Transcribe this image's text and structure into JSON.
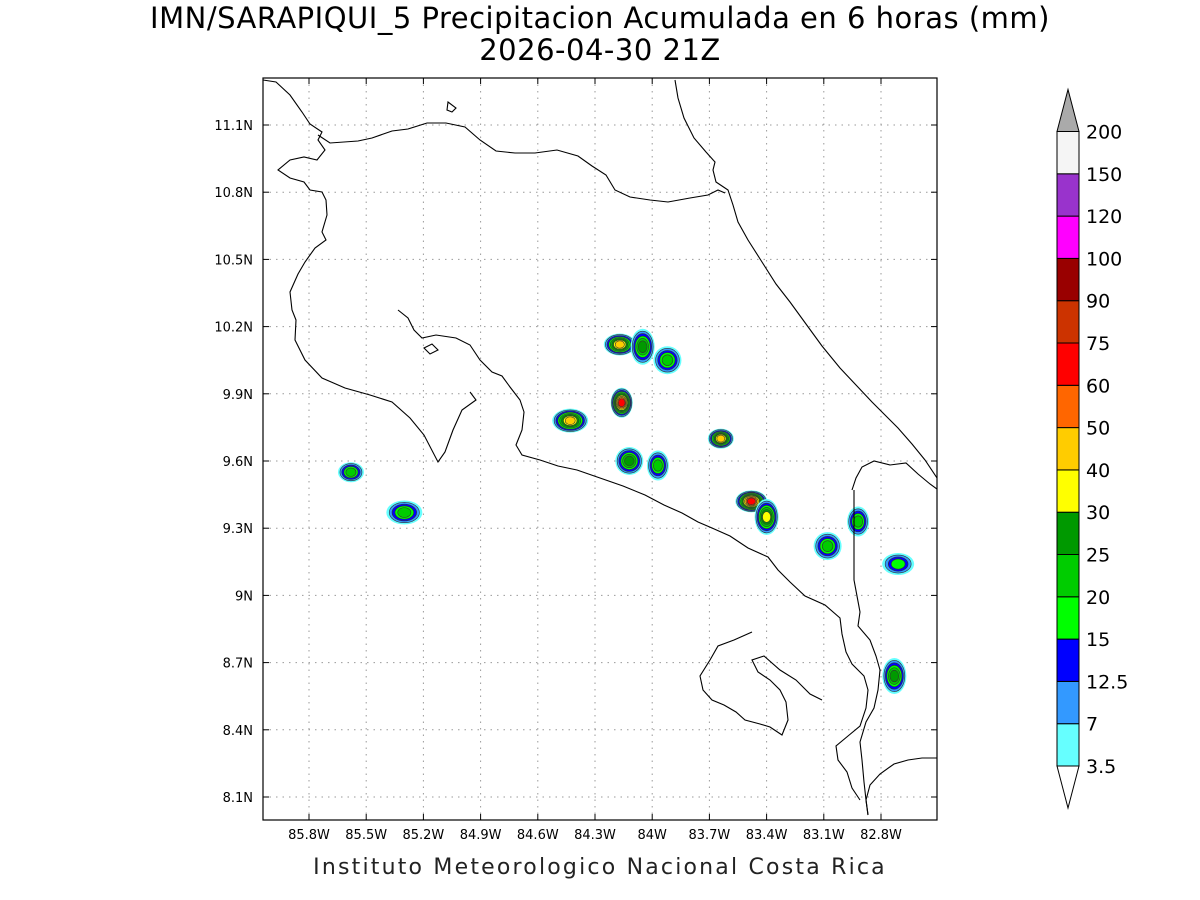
{
  "title": {
    "line1": "IMN/SARAPIQUI_5 Precipitacion Acumulada en 6 horas (mm)",
    "line2": "2026-04-30 21Z"
  },
  "footer": "Instituto Meteorologico Nacional Costa Rica",
  "axes": {
    "lon_labels": [
      "85.8W",
      "85.5W",
      "85.2W",
      "84.9W",
      "84.6W",
      "84.3W",
      "84W",
      "83.7W",
      "83.4W",
      "83.1W",
      "82.8W"
    ],
    "lat_labels": [
      "11.1N",
      "10.8N",
      "10.5N",
      "10.2N",
      "9.9N",
      "9.6N",
      "9.3N",
      "9N",
      "8.7N",
      "8.4N",
      "8.1N"
    ],
    "grid": "dotted"
  },
  "colorbar": {
    "labels": [
      "3.5",
      "7",
      "12.5",
      "15",
      "20",
      "25",
      "30",
      "40",
      "50",
      "60",
      "75",
      "90",
      "100",
      "120",
      "150",
      "200"
    ],
    "colors": [
      "#66FFFF",
      "#3399FF",
      "#0000FF",
      "#00FF00",
      "#00CC00",
      "#009900",
      "#FFFF00",
      "#FFCC00",
      "#FF6600",
      "#FF0000",
      "#CC3300",
      "#990000",
      "#FF00FF",
      "#9933CC",
      "#F5F5F5",
      "#AAAAAA"
    ],
    "over_color": "#AAAAAA",
    "under_color": "#FFFFFF"
  },
  "precip_cells": [
    {
      "lon": -84.17,
      "lat": 10.12,
      "level": 7
    },
    {
      "lon": -84.05,
      "lat": 10.11,
      "level": 5
    },
    {
      "lon": -83.92,
      "lat": 10.05,
      "level": 4
    },
    {
      "lon": -84.16,
      "lat": 9.86,
      "level": 9
    },
    {
      "lon": -84.43,
      "lat": 9.78,
      "level": 7
    },
    {
      "lon": -83.64,
      "lat": 9.7,
      "level": 7
    },
    {
      "lon": -83.48,
      "lat": 9.42,
      "level": 9
    },
    {
      "lon": -83.4,
      "lat": 9.35,
      "level": 6
    },
    {
      "lon": -84.12,
      "lat": 9.6,
      "level": 5
    },
    {
      "lon": -83.97,
      "lat": 9.58,
      "level": 4
    },
    {
      "lon": -85.3,
      "lat": 9.37,
      "level": 4
    },
    {
      "lon": -85.58,
      "lat": 9.55,
      "level": 4
    },
    {
      "lon": -82.71,
      "lat": 9.14,
      "level": 3
    },
    {
      "lon": -82.73,
      "lat": 8.64,
      "level": 5
    },
    {
      "lon": -83.08,
      "lat": 9.22,
      "level": 4
    },
    {
      "lon": -82.92,
      "lat": 9.33,
      "level": 4
    }
  ]
}
